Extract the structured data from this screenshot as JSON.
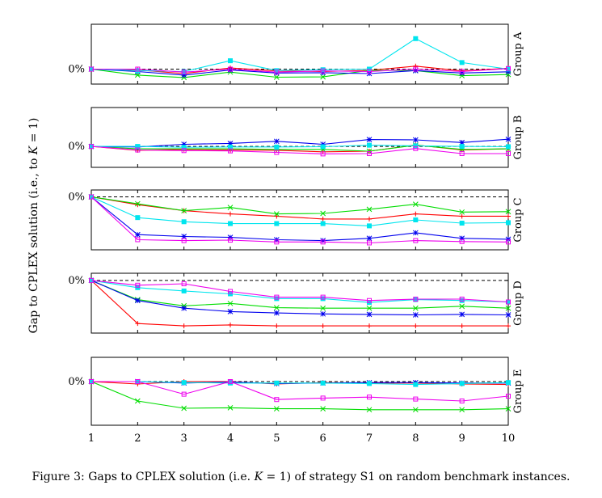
{
  "chart_data": {
    "type": "line",
    "ylabel": "Gap to CPLEX solution (i.e., to K = 1)",
    "ylabel_parts": [
      "Gap to CPLEX solution (i.e., to ",
      "K",
      " = 1)"
    ],
    "x": [
      1,
      2,
      3,
      4,
      5,
      6,
      7,
      8,
      9,
      10
    ],
    "x_tick_labels": [
      "1",
      "2",
      "3",
      "4",
      "5",
      "6",
      "7",
      "8",
      "9",
      "10"
    ],
    "zero_label": "0%",
    "grid": false,
    "legend": "none",
    "colors": {
      "red": "#ff0000",
      "green": "#00dd00",
      "blue": "#0000ee",
      "cyan": "#00e5ee",
      "magenta": "#ee00ee"
    },
    "markers": {
      "red": "plus",
      "green": "cross",
      "blue": "star",
      "cyan": "square-filled",
      "magenta": "square-open"
    },
    "panels": [
      {
        "group": "Group A",
        "ylim": [
          -0.5,
          1.5
        ],
        "series": [
          {
            "color": "red",
            "values": [
              0,
              -0.03,
              -0.15,
              0.04,
              -0.06,
              -0.08,
              -0.04,
              0.1,
              -0.06,
              0.03
            ]
          },
          {
            "color": "green",
            "values": [
              0,
              -0.2,
              -0.28,
              -0.1,
              -0.27,
              -0.26,
              -0.04,
              -0.05,
              -0.22,
              -0.18
            ]
          },
          {
            "color": "blue",
            "values": [
              0,
              -0.08,
              -0.2,
              -0.03,
              -0.13,
              -0.12,
              -0.15,
              -0.05,
              -0.13,
              -0.09
            ]
          },
          {
            "color": "cyan",
            "values": [
              0,
              -0.05,
              -0.08,
              0.28,
              -0.05,
              -0.02,
              0.0,
              1.02,
              0.22,
              0.0
            ]
          },
          {
            "color": "magenta",
            "values": [
              0,
              0.0,
              -0.1,
              0.0,
              -0.1,
              -0.06,
              -0.08,
              0.0,
              -0.08,
              0.02
            ]
          }
        ]
      },
      {
        "group": "Group B",
        "ylim": [
          -0.7,
          1.3
        ],
        "series": [
          {
            "color": "red",
            "values": [
              0,
              -0.13,
              -0.1,
              -0.12,
              -0.13,
              -0.18,
              -0.16,
              0.05,
              -0.12,
              -0.08
            ]
          },
          {
            "color": "green",
            "values": [
              0,
              -0.08,
              -0.08,
              -0.08,
              -0.1,
              -0.1,
              -0.16,
              0.04,
              -0.1,
              -0.08
            ]
          },
          {
            "color": "blue",
            "values": [
              0,
              -0.02,
              0.07,
              0.1,
              0.17,
              0.07,
              0.23,
              0.22,
              0.13,
              0.24
            ]
          },
          {
            "color": "cyan",
            "values": [
              0,
              0.0,
              -0.03,
              -0.02,
              -0.02,
              -0.01,
              0.04,
              0.02,
              0.0,
              -0.01
            ]
          },
          {
            "color": "magenta",
            "values": [
              0,
              -0.12,
              -0.14,
              -0.15,
              -0.2,
              -0.25,
              -0.24,
              -0.07,
              -0.24,
              -0.24
            ]
          }
        ]
      },
      {
        "group": "Group C",
        "ylim": [
          -1.15,
          0.15
        ],
        "series": [
          {
            "color": "red",
            "values": [
              0,
              -0.17,
              -0.3,
              -0.37,
              -0.42,
              -0.48,
              -0.48,
              -0.37,
              -0.42,
              -0.42
            ]
          },
          {
            "color": "green",
            "values": [
              0,
              -0.15,
              -0.3,
              -0.23,
              -0.37,
              -0.36,
              -0.27,
              -0.16,
              -0.33,
              -0.32
            ]
          },
          {
            "color": "blue",
            "values": [
              0,
              -0.82,
              -0.86,
              -0.88,
              -0.93,
              -0.95,
              -0.9,
              -0.78,
              -0.9,
              -0.92
            ]
          },
          {
            "color": "cyan",
            "values": [
              0,
              -0.45,
              -0.54,
              -0.58,
              -0.58,
              -0.58,
              -0.63,
              -0.5,
              -0.57,
              -0.56
            ]
          },
          {
            "color": "magenta",
            "values": [
              0,
              -0.93,
              -0.95,
              -0.94,
              -0.98,
              -0.98,
              -1.0,
              -0.95,
              -0.97,
              -0.98
            ]
          }
        ]
      },
      {
        "group": "Group D",
        "ylim": [
          -1.1,
          0.15
        ],
        "series": [
          {
            "color": "red",
            "values": [
              0,
              -0.9,
              -0.95,
              -0.93,
              -0.95,
              -0.95,
              -0.95,
              -0.95,
              -0.95,
              -0.95
            ]
          },
          {
            "color": "green",
            "values": [
              0,
              -0.4,
              -0.53,
              -0.48,
              -0.57,
              -0.58,
              -0.58,
              -0.58,
              -0.54,
              -0.58
            ]
          },
          {
            "color": "blue",
            "values": [
              0,
              -0.42,
              -0.58,
              -0.65,
              -0.68,
              -0.7,
              -0.71,
              -0.72,
              -0.71,
              -0.72
            ]
          },
          {
            "color": "cyan",
            "values": [
              0,
              -0.15,
              -0.22,
              -0.28,
              -0.38,
              -0.38,
              -0.46,
              -0.4,
              -0.42,
              -0.45
            ]
          },
          {
            "color": "magenta",
            "values": [
              0,
              -0.1,
              -0.07,
              -0.23,
              -0.35,
              -0.35,
              -0.42,
              -0.39,
              -0.39,
              -0.45
            ]
          }
        ]
      },
      {
        "group": "Group E",
        "ylim": [
          -0.9,
          0.5
        ],
        "series": [
          {
            "color": "red",
            "values": [
              0,
              -0.05,
              0.0,
              0.0,
              -0.05,
              -0.02,
              -0.03,
              -0.03,
              -0.05,
              -0.06
            ]
          },
          {
            "color": "green",
            "values": [
              0,
              -0.4,
              -0.55,
              -0.54,
              -0.56,
              -0.56,
              -0.58,
              -0.58,
              -0.58,
              -0.56
            ]
          },
          {
            "color": "blue",
            "values": [
              0,
              0.0,
              -0.03,
              -0.01,
              -0.04,
              -0.03,
              -0.02,
              -0.02,
              -0.03,
              -0.03
            ]
          },
          {
            "color": "cyan",
            "values": [
              0,
              0.0,
              -0.02,
              -0.03,
              -0.03,
              -0.03,
              -0.04,
              -0.06,
              -0.04,
              -0.02
            ]
          },
          {
            "color": "magenta",
            "values": [
              0,
              0.0,
              -0.26,
              0.0,
              -0.37,
              -0.34,
              -0.32,
              -0.36,
              -0.4,
              -0.3
            ]
          }
        ]
      }
    ]
  },
  "caption": {
    "parts": [
      "Figure 3: Gaps to CPLEX solution (i.e. ",
      "K",
      " = 1) of strategy S1 on random benchmark instances."
    ]
  }
}
